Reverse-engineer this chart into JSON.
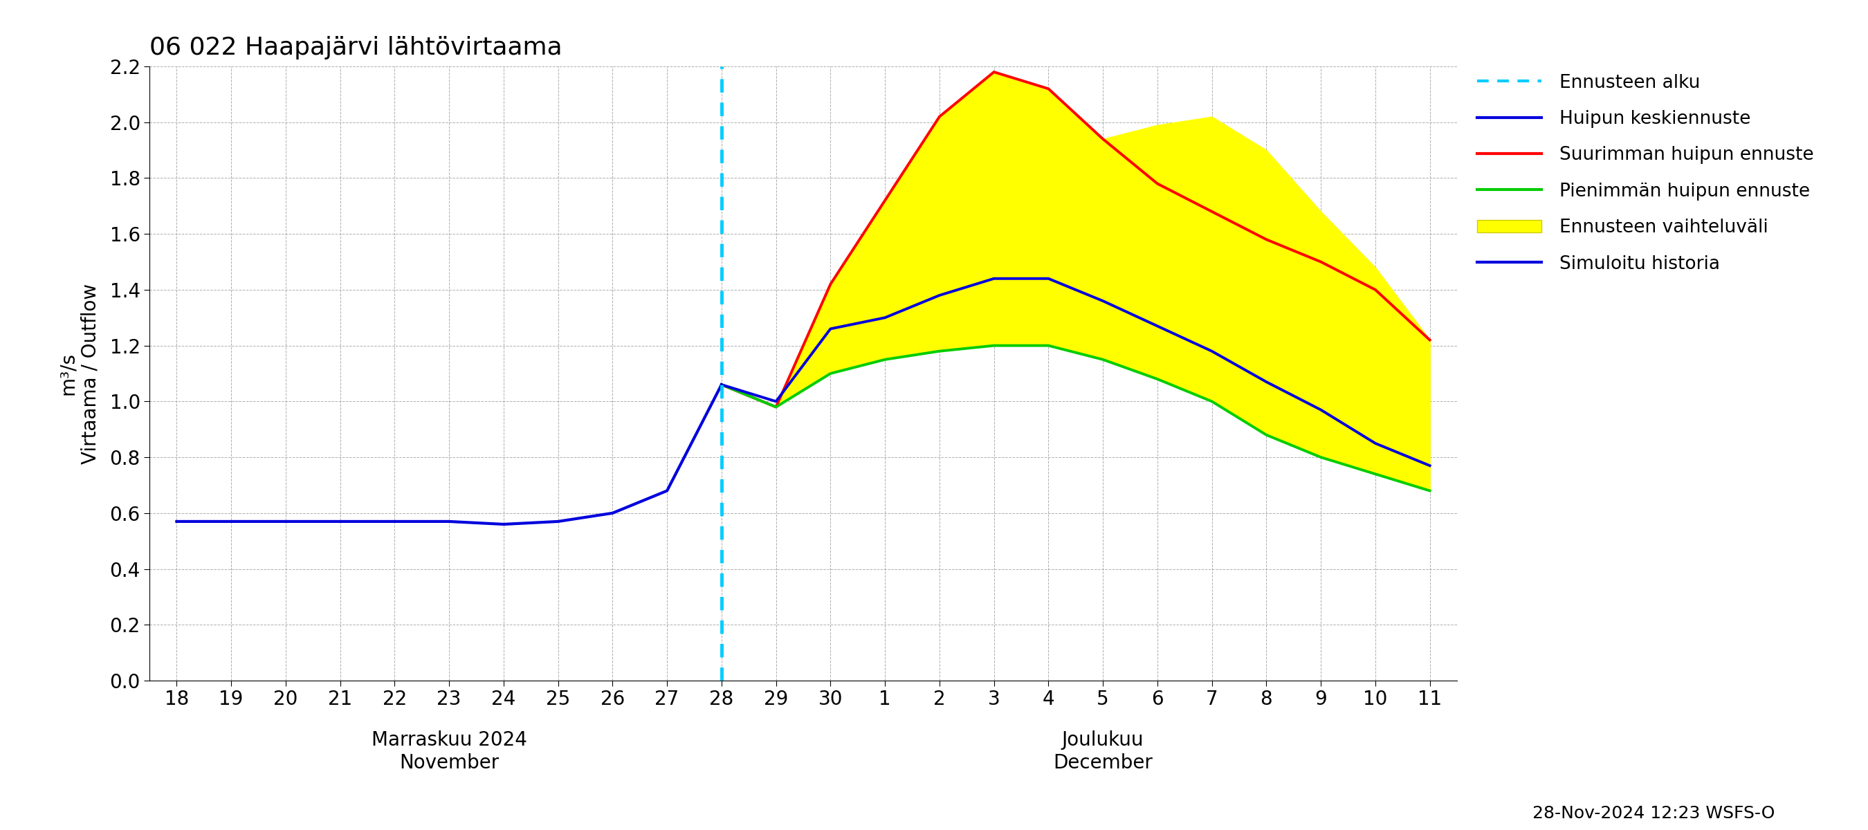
{
  "title": "06 022 Haapajärvi lähtövirtaama",
  "ylabel_left": "Virtaama / Outflow",
  "ylabel_right": "m³/s",
  "footnote": "28-Nov-2024 12:23 WSFS-O",
  "ylim": [
    0.0,
    2.2
  ],
  "yticks": [
    0.0,
    0.2,
    0.4,
    0.6,
    0.8,
    1.0,
    1.2,
    1.4,
    1.6,
    1.8,
    2.0,
    2.2
  ],
  "nov_days": [
    18,
    19,
    20,
    21,
    22,
    23,
    24,
    25,
    26,
    27,
    28
  ],
  "dec_days": [
    29,
    30,
    1,
    2,
    3,
    4,
    5,
    6,
    7,
    8,
    9,
    10,
    11
  ],
  "history_y": [
    0.57,
    0.57,
    0.57,
    0.57,
    0.57,
    0.57,
    0.56,
    0.57,
    0.6,
    0.68,
    1.06
  ],
  "mean_y": [
    1.06,
    1.0,
    1.26,
    1.3,
    1.38,
    1.44,
    1.44,
    1.36,
    1.27,
    1.18,
    1.07,
    0.97,
    0.85,
    0.77
  ],
  "max_y": [
    1.06,
    0.98,
    1.42,
    1.72,
    2.02,
    2.18,
    2.12,
    1.94,
    1.78,
    1.68,
    1.58,
    1.5,
    1.4,
    1.22
  ],
  "min_y": [
    1.06,
    0.98,
    1.1,
    1.15,
    1.18,
    1.2,
    1.2,
    1.15,
    1.08,
    1.0,
    0.88,
    0.8,
    0.74,
    0.68
  ],
  "band_upper_y": [
    1.06,
    0.98,
    1.42,
    1.72,
    2.02,
    2.18,
    2.12,
    1.94,
    1.99,
    2.02,
    1.9,
    1.68,
    1.48,
    1.22
  ],
  "band_lower_y": [
    1.06,
    0.98,
    1.1,
    1.15,
    1.18,
    1.2,
    1.2,
    1.15,
    1.08,
    1.0,
    0.88,
    0.8,
    0.74,
    0.68
  ],
  "colors": {
    "history": "#0000dd",
    "mean": "#0000dd",
    "max": "#ff0000",
    "min": "#00cc00",
    "band": "#ffff00",
    "forecast_line": "#00ccff"
  },
  "legend_labels": [
    "Ennusteen alku",
    "Huipun keskiennuste",
    "Suurimman huipun ennuste",
    "Pienimmän huipun ennuste",
    "Ennusteen vaihteluväli",
    "Simuloitu historia"
  ]
}
